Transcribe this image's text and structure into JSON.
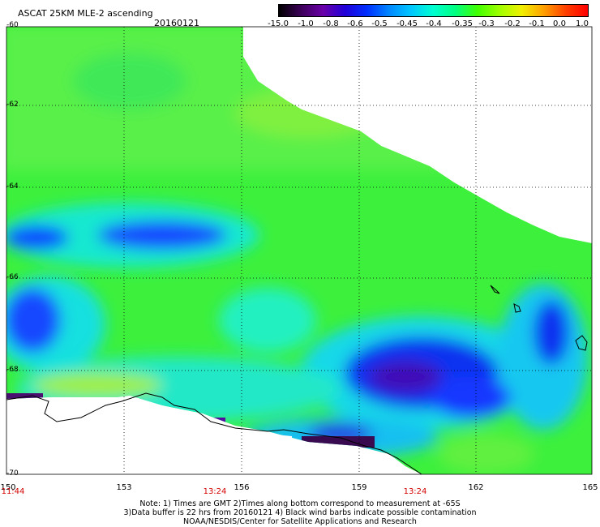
{
  "header": {
    "title": "ASCAT 25KM MLE-2 ascending",
    "date": "20160121"
  },
  "colorbar": {
    "labels": [
      "-15.0",
      "-1.0",
      "-0.8",
      "-0.6",
      "-0.5",
      "-0.45",
      "-0.4",
      "-0.35",
      "-0.3",
      "-0.2",
      "-0.1",
      "0.0",
      "1.0"
    ],
    "colors": [
      "#000000",
      "#3c0058",
      "#6a00a8",
      "#2000d8",
      "#0030ff",
      "#0088ff",
      "#00c8ff",
      "#00ffd0",
      "#00ff80",
      "#40ff00",
      "#a0ff00",
      "#f0f000",
      "#ffa000",
      "#ff4000",
      "#ff0000"
    ]
  },
  "axes": {
    "lat_labels": [
      "-60",
      "-62",
      "-64",
      "-66",
      "-68",
      "-70"
    ],
    "lon_labels": [
      "150",
      "153",
      "156",
      "159",
      "162",
      "165"
    ],
    "time_labels": [
      "11:44",
      "13:24",
      "13:24"
    ]
  },
  "notes": {
    "line1": "Note: 1) Times are GMT 2)Times along bottom correspond to measurement at -65S",
    "line2": "3)Data buffer is 22 hrs from 20160121 4) Black wind barbs indicate possible contamination",
    "line3": "NOAA/NESDIS/Center for Satellite Applications and Research"
  },
  "colors": {
    "field_green": "#40f040",
    "field_cyan": "#18e8d8",
    "field_blue": "#1040ff",
    "field_deep": "#3010c0",
    "field_yellowgreen": "#a8f040",
    "land_dark": "#3a0a50",
    "grid": "#000000"
  }
}
